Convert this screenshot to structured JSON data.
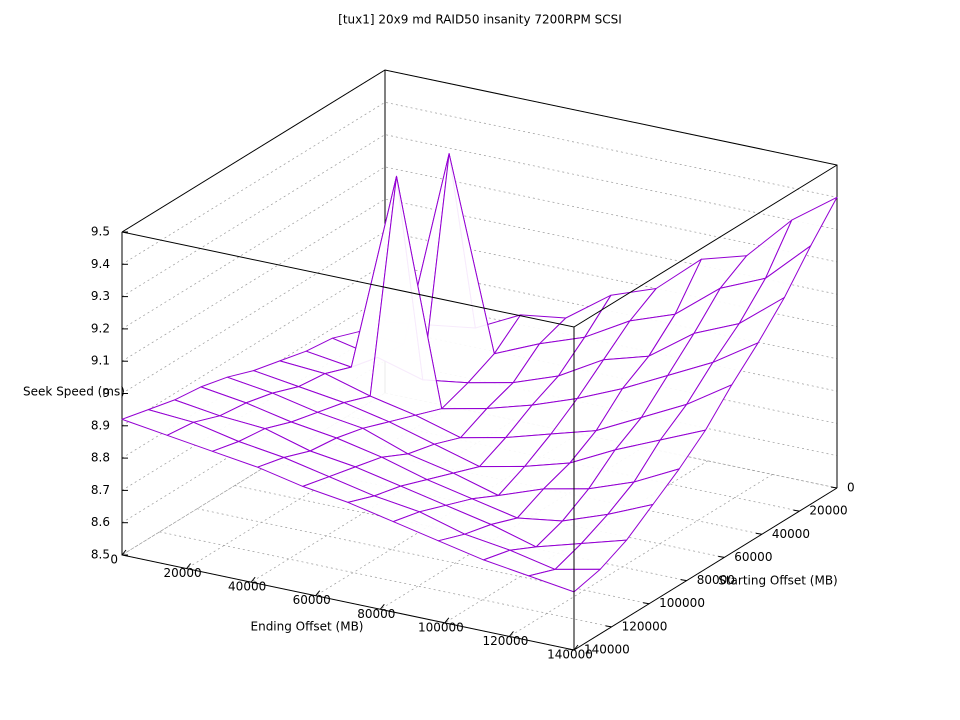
{
  "chart_data": {
    "type": "surface",
    "title": "[tux1] 20x9 md RAID50 insanity 7200RPM SCSI",
    "x_label": "Ending Offset (MB)",
    "y_label": "Starting Offset (MB)",
    "z_label": "Seek Speed (ms)",
    "x": [
      0,
      14000,
      28000,
      42000,
      56000,
      70000,
      84000,
      98000,
      112000,
      126000,
      140000
    ],
    "y": [
      0,
      14000,
      28000,
      42000,
      56000,
      70000,
      84000,
      98000,
      112000,
      126000,
      140000
    ],
    "z": [
      [
        8.72,
        8.74,
        8.76,
        8.83,
        8.85,
        8.95,
        9.0,
        9.12,
        9.16,
        9.3,
        9.4
      ],
      [
        8.74,
        8.73,
        9.35,
        8.76,
        8.82,
        8.87,
        8.95,
        9.0,
        9.11,
        9.17,
        9.3
      ],
      [
        8.77,
        8.74,
        8.7,
        8.72,
        8.75,
        8.8,
        8.88,
        8.92,
        9.02,
        9.08,
        9.19
      ],
      [
        8.78,
        8.76,
        9.38,
        8.69,
        8.72,
        8.76,
        8.81,
        8.87,
        8.94,
        9.01,
        9.1
      ],
      [
        8.8,
        8.79,
        8.75,
        8.72,
        8.68,
        8.71,
        8.75,
        8.79,
        8.86,
        8.93,
        9.02
      ],
      [
        8.82,
        8.8,
        8.78,
        8.75,
        8.71,
        8.67,
        8.7,
        8.74,
        8.81,
        8.87,
        8.93
      ],
      [
        8.85,
        8.83,
        8.8,
        8.78,
        8.73,
        8.7,
        8.66,
        8.71,
        8.74,
        8.79,
        8.86
      ],
      [
        8.87,
        8.85,
        8.82,
        8.8,
        8.77,
        8.73,
        8.7,
        8.67,
        8.69,
        8.74,
        8.8
      ],
      [
        8.88,
        8.86,
        8.85,
        8.81,
        8.79,
        8.76,
        8.73,
        8.7,
        8.66,
        8.7,
        8.74
      ],
      [
        8.9,
        8.89,
        8.86,
        8.84,
        8.81,
        8.78,
        8.76,
        8.72,
        8.7,
        8.67,
        8.7
      ],
      [
        8.92,
        8.9,
        8.88,
        8.86,
        8.83,
        8.81,
        8.78,
        8.75,
        8.72,
        8.7,
        8.68
      ]
    ],
    "color": "#9400d3",
    "xlim": [
      0,
      140000
    ],
    "xticks": [
      0,
      20000,
      40000,
      60000,
      80000,
      100000,
      120000,
      140000
    ],
    "ylim": [
      0,
      140000
    ],
    "yticks": [
      0,
      20000,
      40000,
      60000,
      80000,
      100000,
      120000,
      140000
    ],
    "zlim": [
      8.5,
      9.5
    ],
    "zticks": [
      8.5,
      8.6,
      8.7,
      8.8,
      8.9,
      9,
      9.1,
      9.2,
      9.3,
      9.4,
      9.5
    ],
    "grid": true
  }
}
